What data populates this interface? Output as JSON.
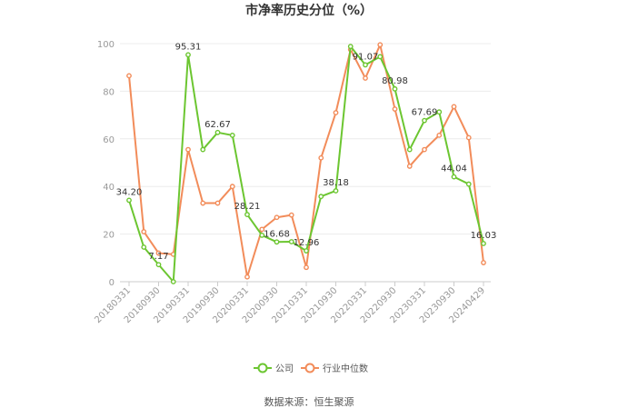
{
  "chart_data": {
    "type": "line",
    "title": "市净率历史分位（%）",
    "ylim": [
      0,
      100
    ],
    "yticks": [
      0,
      20,
      40,
      60,
      80,
      100
    ],
    "xlabels": [
      "20180331",
      "20180930",
      "20190331",
      "20190930",
      "20200331",
      "20200930",
      "20210331",
      "20210930",
      "20220331",
      "20220930",
      "20230331",
      "20230930",
      "20240429"
    ],
    "grid": "horizontal",
    "legend_position": "bottom",
    "series": [
      {
        "name": "公司",
        "color": "#6cc631",
        "values": [
          34.2,
          14.5,
          7.17,
          0,
          95.31,
          55.5,
          62.67,
          61.5,
          28.21,
          19.5,
          16.68,
          16.8,
          12.96,
          35.8,
          38.18,
          98.8,
          91.07,
          94.5,
          80.98,
          55.5,
          67.69,
          71.3,
          44.04,
          41,
          16.03
        ],
        "labels": [
          "34.20",
          "",
          "7.17",
          "",
          "95.31",
          "",
          "62.67",
          "",
          "28.21",
          "",
          "16.68",
          "",
          "12.96",
          "",
          "38.18",
          "",
          "91.07",
          "",
          "80.98",
          "",
          "67.69",
          "",
          "44.04",
          "",
          "16.03"
        ]
      },
      {
        "name": "行业中位数",
        "color": "#f28c5a",
        "values": [
          86.5,
          21,
          12,
          11.5,
          55.5,
          33,
          33,
          40,
          2,
          22,
          27,
          28,
          6,
          52,
          71,
          97.5,
          85.5,
          99.5,
          72.5,
          48.5,
          55.5,
          61.5,
          73.5,
          60.5,
          8
        ]
      }
    ]
  },
  "source": "数据来源：恒生聚源"
}
